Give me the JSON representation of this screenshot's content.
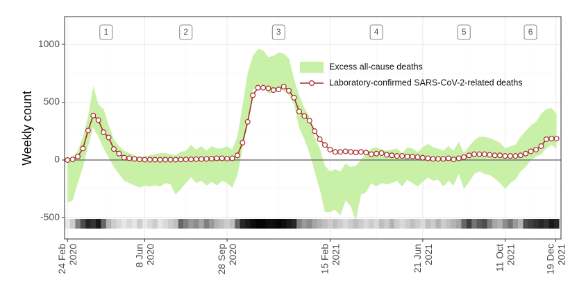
{
  "chart_data": {
    "type": "line",
    "y_label": "Weekly count",
    "x": [
      "2020-02-24",
      "2020-03-02",
      "2020-03-09",
      "2020-03-16",
      "2020-03-23",
      "2020-03-30",
      "2020-04-06",
      "2020-04-13",
      "2020-04-20",
      "2020-04-27",
      "2020-05-04",
      "2020-05-11",
      "2020-05-18",
      "2020-05-25",
      "2020-06-01",
      "2020-06-08",
      "2020-06-15",
      "2020-06-22",
      "2020-06-29",
      "2020-07-06",
      "2020-07-13",
      "2020-07-20",
      "2020-07-27",
      "2020-08-03",
      "2020-08-10",
      "2020-08-17",
      "2020-08-24",
      "2020-08-31",
      "2020-09-07",
      "2020-09-14",
      "2020-09-21",
      "2020-09-28",
      "2020-10-05",
      "2020-10-12",
      "2020-10-19",
      "2020-10-26",
      "2020-11-02",
      "2020-11-09",
      "2020-11-16",
      "2020-11-23",
      "2020-11-30",
      "2020-12-07",
      "2020-12-14",
      "2020-12-21",
      "2020-12-28",
      "2021-01-04",
      "2021-01-11",
      "2021-01-18",
      "2021-01-25",
      "2021-02-01",
      "2021-02-08",
      "2021-02-15",
      "2021-02-22",
      "2021-03-01",
      "2021-03-08",
      "2021-03-15",
      "2021-03-22",
      "2021-03-29",
      "2021-04-05",
      "2021-04-12",
      "2021-04-19",
      "2021-04-26",
      "2021-05-03",
      "2021-05-10",
      "2021-05-17",
      "2021-05-24",
      "2021-05-31",
      "2021-06-07",
      "2021-06-14",
      "2021-06-21",
      "2021-06-28",
      "2021-07-05",
      "2021-07-12",
      "2021-07-19",
      "2021-07-26",
      "2021-08-02",
      "2021-08-09",
      "2021-08-16",
      "2021-08-23",
      "2021-08-30",
      "2021-09-06",
      "2021-09-13",
      "2021-09-20",
      "2021-09-27",
      "2021-10-04",
      "2021-10-11",
      "2021-10-18",
      "2021-10-25",
      "2021-11-01",
      "2021-11-08",
      "2021-11-15",
      "2021-11-22",
      "2021-11-29",
      "2021-12-06",
      "2021-12-13",
      "2021-12-20"
    ],
    "series": [
      {
        "name": "Excess all-cause deaths",
        "color": "#c8f0a6",
        "lower": [
          -370,
          -350,
          -200,
          -60,
          120,
          280,
          200,
          100,
          20,
          -60,
          -120,
          -180,
          -200,
          -220,
          -240,
          -220,
          -230,
          -220,
          -230,
          -200,
          -210,
          -300,
          -250,
          -200,
          -150,
          -200,
          -180,
          -220,
          -190,
          -220,
          -180,
          -200,
          -240,
          -130,
          100,
          300,
          600,
          650,
          640,
          580,
          580,
          620,
          600,
          560,
          480,
          280,
          180,
          60,
          -100,
          -250,
          -450,
          -450,
          -430,
          -480,
          -350,
          -400,
          -520,
          -300,
          -280,
          -200,
          -230,
          -200,
          -210,
          -200,
          -180,
          -230,
          -170,
          -200,
          -230,
          -190,
          -150,
          -180,
          -170,
          -230,
          -180,
          -220,
          -120,
          -250,
          -190,
          -120,
          -100,
          -120,
          -130,
          -160,
          -200,
          -250,
          -200,
          -170,
          -100,
          -60,
          0,
          30,
          50,
          100,
          130,
          100
        ],
        "upper": [
          -20,
          20,
          80,
          200,
          380,
          640,
          480,
          440,
          300,
          180,
          120,
          80,
          60,
          40,
          20,
          30,
          40,
          50,
          60,
          60,
          50,
          40,
          70,
          80,
          130,
          90,
          120,
          80,
          120,
          100,
          100,
          120,
          90,
          200,
          470,
          750,
          900,
          960,
          950,
          890,
          900,
          930,
          920,
          880,
          700,
          560,
          450,
          380,
          200,
          100,
          -50,
          -100,
          -80,
          -100,
          -30,
          -60,
          -50,
          0,
          50,
          100,
          110,
          90,
          80,
          90,
          100,
          60,
          110,
          100,
          70,
          110,
          140,
          110,
          100,
          80,
          120,
          80,
          160,
          60,
          120,
          170,
          200,
          200,
          190,
          170,
          150,
          100,
          120,
          130,
          200,
          250,
          300,
          330,
          400,
          440,
          450,
          400
        ]
      },
      {
        "name": "Laboratory-confirmed SARS-CoV-2-related deaths",
        "color": "#a82a2a",
        "values": [
          0,
          5,
          30,
          100,
          255,
          385,
          345,
          240,
          195,
          95,
          55,
          20,
          15,
          10,
          5,
          3,
          3,
          3,
          2,
          3,
          3,
          3,
          4,
          5,
          6,
          7,
          8,
          10,
          12,
          15,
          15,
          12,
          15,
          40,
          150,
          330,
          560,
          625,
          625,
          620,
          605,
          610,
          635,
          600,
          540,
          420,
          380,
          340,
          250,
          180,
          130,
          90,
          70,
          70,
          75,
          70,
          65,
          70,
          65,
          50,
          55,
          60,
          45,
          40,
          35,
          35,
          30,
          30,
          25,
          20,
          15,
          10,
          10,
          10,
          15,
          5,
          15,
          25,
          40,
          50,
          50,
          50,
          45,
          40,
          40,
          35,
          35,
          35,
          40,
          55,
          75,
          90,
          120,
          180,
          185,
          185
        ]
      }
    ],
    "intensity": [
      10,
      20,
      50,
      70,
      85,
      80,
      90,
      60,
      30,
      20,
      15,
      10,
      15,
      10,
      20,
      10,
      15,
      20,
      10,
      15,
      20,
      25,
      60,
      50,
      40,
      45,
      35,
      50,
      40,
      30,
      25,
      20,
      25,
      60,
      85,
      90,
      95,
      98,
      98,
      95,
      95,
      98,
      95,
      90,
      85,
      50,
      40,
      45,
      35,
      30,
      25,
      20,
      25,
      20,
      15,
      20,
      25,
      20,
      15,
      20,
      15,
      25,
      20,
      30,
      20,
      15,
      20,
      25,
      20,
      15,
      25,
      20,
      30,
      20,
      25,
      30,
      35,
      60,
      75,
      55,
      65,
      70,
      50,
      35,
      30,
      45,
      55,
      40,
      30,
      70,
      75,
      80,
      85,
      80,
      90,
      85
    ],
    "periods": [
      "1",
      "2",
      "3",
      "4",
      "5",
      "6"
    ],
    "reference_line": 0,
    "xlim": [
      "2020-02-20",
      "2021-12-26"
    ],
    "xticks": [
      {
        "value": "2020-02-24",
        "label": "24 Feb 2020"
      },
      {
        "value": "2020-06-08",
        "label": "8 Jun 2020"
      },
      {
        "value": "2020-09-28",
        "label": "28 Sep 2020"
      },
      {
        "value": "2021-02-15",
        "label": "15 Feb 2021"
      },
      {
        "value": "2021-06-21",
        "label": "21 Jun 2021"
      },
      {
        "value": "2021-10-11",
        "label": "11 Oct 2021"
      },
      {
        "value": "2021-12-19",
        "label": "19 Dec 2021"
      }
    ],
    "ylim": [
      -683,
      1240
    ],
    "yticks": [
      -500,
      0,
      500,
      1000
    ],
    "grid": true,
    "legend": "top-right"
  }
}
